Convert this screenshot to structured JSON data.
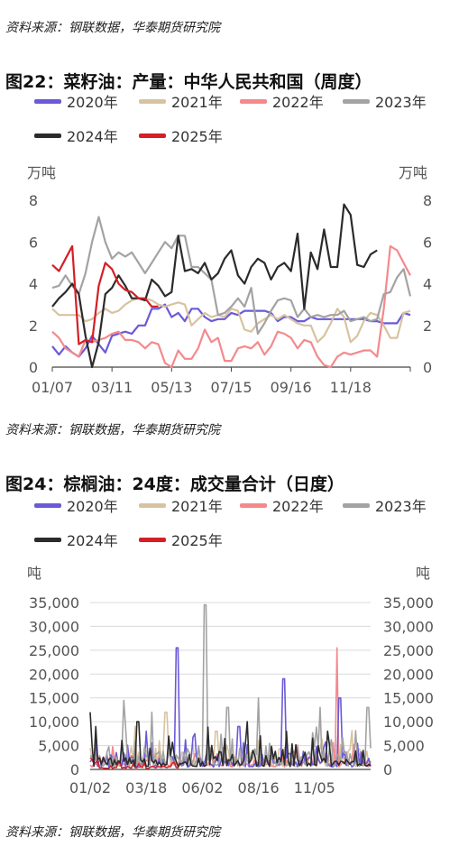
{
  "sources": {
    "top": "资料来源：钢联数据，华泰期货研究院",
    "middle": "资料来源：钢联数据，华泰期货研究院",
    "bottom": "资料来源：钢联数据，华泰期货研究院"
  },
  "colors": {
    "2020": "#6a5ad8",
    "2021": "#d7c3a0",
    "2022": "#f4898c",
    "2023": "#a3a3a3",
    "2024": "#2b2b2b",
    "2025": "#d41f26"
  },
  "chart_data": [
    {
      "type": "line",
      "title": "图22：菜籽油：产量：中华人民共和国（周度）",
      "ylabel_left": "万吨",
      "ylabel_right": "万吨",
      "ylim": [
        0,
        8
      ],
      "yticks": [
        0,
        2,
        4,
        6,
        8
      ],
      "xticks": [
        "01/07",
        "03/11",
        "05/13",
        "07/15",
        "09/16",
        "11/18"
      ],
      "legend_position": "top",
      "grid": false,
      "series": [
        {
          "name": "2020年",
          "values": [
            1.0,
            0.6,
            1.0,
            0.7,
            0.5,
            0.9,
            1.5,
            1.1,
            0.7,
            1.5,
            1.6,
            1.7,
            1.6,
            2.0,
            2.0,
            2.8,
            2.8,
            3.0,
            2.4,
            2.6,
            2.2,
            2.8,
            2.8,
            2.4,
            2.2,
            2.3,
            2.3,
            2.6,
            2.5,
            2.7,
            2.7,
            2.7,
            2.7,
            2.6,
            2.2,
            2.4,
            2.4,
            2.2,
            2.2,
            2.4,
            2.3,
            2.3,
            2.3,
            2.3,
            2.3,
            2.3,
            2.3,
            2.3,
            2.2,
            2.2,
            2.1,
            2.1,
            2.1,
            2.6,
            2.5
          ]
        },
        {
          "name": "2021年",
          "values": [
            2.8,
            2.5,
            2.5,
            2.5,
            2.5,
            2.2,
            2.3,
            2.6,
            2.8,
            2.6,
            2.7,
            3.0,
            3.2,
            3.3,
            3.3,
            3.2,
            3.0,
            2.9,
            3.0,
            3.1,
            3.0,
            2.0,
            2.3,
            2.6,
            2.4,
            2.5,
            2.4,
            2.8,
            2.7,
            1.8,
            1.7,
            2.1,
            2.3,
            2.5,
            2.3,
            2.5,
            2.3,
            2.1,
            2.0,
            2.0,
            1.2,
            1.5,
            2.1,
            2.8,
            2.4,
            1.2,
            1.5,
            2.2,
            2.6,
            2.5,
            2.0,
            1.4,
            1.4,
            2.6,
            2.7
          ]
        },
        {
          "name": "2022年",
          "values": [
            1.7,
            1.4,
            0.9,
            0.7,
            0.5,
            1.3,
            1.2,
            1.3,
            1.4,
            1.6,
            1.7,
            1.3,
            1.3,
            1.2,
            0.9,
            1.2,
            1.1,
            0.2,
            0.0,
            0.8,
            0.4,
            0.4,
            0.9,
            1.8,
            1.2,
            1.4,
            0.3,
            0.3,
            0.9,
            1.0,
            0.9,
            1.2,
            0.6,
            1.0,
            1.7,
            1.6,
            1.4,
            0.9,
            1.3,
            1.2,
            0.5,
            0.1,
            0.0,
            0.5,
            0.7,
            0.6,
            0.7,
            0.8,
            0.8,
            0.5,
            2.8,
            5.8,
            5.6,
            5.0,
            4.4
          ]
        },
        {
          "name": "2023年",
          "values": [
            3.8,
            3.9,
            4.4,
            3.9,
            3.5,
            4.5,
            6.0,
            7.2,
            6.0,
            5.2,
            5.5,
            5.3,
            5.5,
            5.0,
            4.5,
            5.0,
            5.5,
            6.0,
            5.7,
            6.3,
            6.3,
            4.8,
            4.8,
            4.5,
            4.2,
            2.5,
            2.6,
            2.9,
            3.3,
            2.9,
            3.8,
            1.6,
            2.1,
            2.7,
            3.2,
            3.3,
            3.2,
            2.4,
            2.8,
            2.4,
            2.5,
            2.4,
            2.5,
            2.5,
            2.7,
            2.2,
            2.3,
            2.4,
            2.2,
            2.3,
            3.5,
            3.6,
            4.3,
            4.7,
            3.4
          ]
        },
        {
          "name": "2024年",
          "values": [
            2.9,
            3.3,
            3.6,
            4.0,
            3.5,
            1.5,
            0.0,
            1.2,
            3.5,
            3.8,
            4.4,
            3.9,
            3.3,
            3.3,
            3.2,
            4.2,
            3.9,
            3.4,
            3.6,
            6.3,
            4.6,
            4.7,
            4.5,
            5.0,
            4.2,
            4.5,
            5.2,
            5.6,
            4.4,
            4.0,
            4.8,
            5.2,
            5.0,
            4.2,
            4.8,
            5.0,
            4.6,
            6.4,
            2.8,
            5.5,
            4.7,
            6.6,
            4.8,
            4.8,
            7.8,
            7.3,
            4.9,
            4.8,
            5.4,
            5.6
          ]
        },
        {
          "name": "2025年",
          "values": [
            4.9,
            4.6,
            5.2,
            5.8,
            1.1,
            1.3,
            1.2,
            3.9,
            5.0,
            4.7,
            4.0,
            3.7,
            3.6,
            3.3,
            3.3,
            2.9,
            2.9
          ]
        }
      ]
    },
    {
      "type": "line",
      "title": "图24：棕榈油：24度：成交量合计（日度）",
      "ylabel_left": "吨",
      "ylabel_right": "吨",
      "ylim": [
        0,
        35000
      ],
      "yticks": [
        0,
        5000,
        10000,
        15000,
        20000,
        25000,
        30000,
        35000
      ],
      "ytick_labels": [
        "0",
        "5,000",
        "10,000",
        "15,000",
        "20,000",
        "25,000",
        "30,000",
        "35,000"
      ],
      "xticks": [
        "01/02",
        "03/18",
        "06/02",
        "08/16",
        "11/05"
      ],
      "legend_position": "top",
      "grid": true,
      "peaks": [
        {
          "name": "2020年",
          "x": [
            0.2,
            0.31,
            0.53,
            0.69,
            0.89
          ],
          "y": [
            8000,
            25500,
            9000,
            19000,
            15000
          ]
        },
        {
          "name": "2021年",
          "x": [
            0.16,
            0.27,
            0.45
          ],
          "y": [
            9000,
            12000,
            8000
          ]
        },
        {
          "name": "2022年",
          "x": [
            0.88,
            0.98
          ],
          "y": [
            25500,
            2500
          ]
        },
        {
          "name": "2023年",
          "x": [
            0.12,
            0.22,
            0.41,
            0.49,
            0.6,
            0.82,
            0.99
          ],
          "y": [
            14500,
            12000,
            34500,
            13000,
            15000,
            13000,
            13000
          ]
        },
        {
          "name": "2024年",
          "x": [
            0.0,
            0.02,
            0.17,
            0.28,
            0.56,
            0.7
          ],
          "y": [
            12000,
            9000,
            10000,
            7000,
            10000,
            8000
          ]
        },
        {
          "name": "2025年",
          "x": [
            0.0,
            0.3
          ],
          "y": [
            2500,
            1500
          ]
        }
      ],
      "series_order": [
        "2020年",
        "2021年",
        "2022年",
        "2023年",
        "2024年",
        "2025年"
      ]
    }
  ]
}
